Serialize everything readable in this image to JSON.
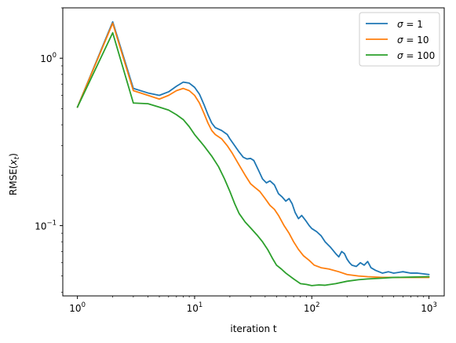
{
  "chart_data": {
    "type": "line",
    "xlabel": "iteration t",
    "ylabel": "RMSE(x_t)",
    "xscale": "log",
    "yscale": "log",
    "xlim": [
      0.75,
      1350
    ],
    "ylim": [
      0.038,
      2.0
    ],
    "x_ticks": [
      {
        "value": 1,
        "base": "10",
        "exp": "0"
      },
      {
        "value": 10,
        "base": "10",
        "exp": "1"
      },
      {
        "value": 100,
        "base": "10",
        "exp": "2"
      },
      {
        "value": 1000,
        "base": "10",
        "exp": "3"
      }
    ],
    "y_ticks": [
      {
        "value": 0.1,
        "base": "10",
        "exp": "−1"
      },
      {
        "value": 1,
        "base": "10",
        "exp": "0"
      }
    ],
    "legend": {
      "placement": "top-right",
      "entries": [
        {
          "symbol": "σ",
          "label": "1"
        },
        {
          "symbol": "σ",
          "label": "10"
        },
        {
          "symbol": "σ",
          "label": "100"
        }
      ]
    },
    "series": [
      {
        "name": "σ = 1",
        "color": "#1f77b4",
        "points": [
          [
            1,
            0.51
          ],
          [
            2,
            1.65
          ],
          [
            3,
            0.66
          ],
          [
            4,
            0.62
          ],
          [
            5,
            0.6
          ],
          [
            6,
            0.63
          ],
          [
            7,
            0.68
          ],
          [
            8,
            0.72
          ],
          [
            9,
            0.71
          ],
          [
            10,
            0.67
          ],
          [
            11,
            0.61
          ],
          [
            12,
            0.53
          ],
          [
            13,
            0.46
          ],
          [
            14,
            0.41
          ],
          [
            15,
            0.385
          ],
          [
            17,
            0.37
          ],
          [
            19,
            0.35
          ],
          [
            20,
            0.33
          ],
          [
            22,
            0.3
          ],
          [
            24,
            0.275
          ],
          [
            26,
            0.256
          ],
          [
            28,
            0.25
          ],
          [
            30,
            0.252
          ],
          [
            32,
            0.245
          ],
          [
            35,
            0.215
          ],
          [
            38,
            0.19
          ],
          [
            41,
            0.18
          ],
          [
            44,
            0.185
          ],
          [
            48,
            0.175
          ],
          [
            52,
            0.155
          ],
          [
            56,
            0.148
          ],
          [
            60,
            0.14
          ],
          [
            64,
            0.145
          ],
          [
            68,
            0.135
          ],
          [
            72,
            0.12
          ],
          [
            77,
            0.11
          ],
          [
            82,
            0.115
          ],
          [
            88,
            0.108
          ],
          [
            95,
            0.1
          ],
          [
            100,
            0.096
          ],
          [
            110,
            0.092
          ],
          [
            120,
            0.087
          ],
          [
            130,
            0.08
          ],
          [
            145,
            0.074
          ],
          [
            160,
            0.068
          ],
          [
            170,
            0.065
          ],
          [
            180,
            0.07
          ],
          [
            190,
            0.068
          ],
          [
            200,
            0.063
          ],
          [
            210,
            0.06
          ],
          [
            220,
            0.058
          ],
          [
            240,
            0.057
          ],
          [
            260,
            0.06
          ],
          [
            280,
            0.058
          ],
          [
            300,
            0.061
          ],
          [
            320,
            0.056
          ],
          [
            350,
            0.054
          ],
          [
            400,
            0.052
          ],
          [
            450,
            0.053
          ],
          [
            500,
            0.052
          ],
          [
            600,
            0.053
          ],
          [
            700,
            0.052
          ],
          [
            800,
            0.052
          ],
          [
            1000,
            0.051
          ]
        ]
      },
      {
        "name": "σ = 10",
        "color": "#ff7f0e",
        "points": [
          [
            1,
            0.51
          ],
          [
            2,
            1.62
          ],
          [
            3,
            0.64
          ],
          [
            4,
            0.6
          ],
          [
            5,
            0.57
          ],
          [
            6,
            0.6
          ],
          [
            7,
            0.64
          ],
          [
            8,
            0.66
          ],
          [
            9,
            0.64
          ],
          [
            10,
            0.6
          ],
          [
            11,
            0.54
          ],
          [
            12,
            0.47
          ],
          [
            13,
            0.41
          ],
          [
            14,
            0.37
          ],
          [
            15,
            0.35
          ],
          [
            17,
            0.33
          ],
          [
            19,
            0.3
          ],
          [
            21,
            0.27
          ],
          [
            24,
            0.23
          ],
          [
            27,
            0.2
          ],
          [
            30,
            0.178
          ],
          [
            33,
            0.168
          ],
          [
            36,
            0.16
          ],
          [
            40,
            0.145
          ],
          [
            44,
            0.132
          ],
          [
            48,
            0.125
          ],
          [
            52,
            0.115
          ],
          [
            58,
            0.1
          ],
          [
            64,
            0.09
          ],
          [
            70,
            0.08
          ],
          [
            77,
            0.072
          ],
          [
            85,
            0.066
          ],
          [
            95,
            0.062
          ],
          [
            105,
            0.058
          ],
          [
            120,
            0.056
          ],
          [
            140,
            0.055
          ],
          [
            170,
            0.053
          ],
          [
            200,
            0.051
          ],
          [
            250,
            0.05
          ],
          [
            300,
            0.0495
          ],
          [
            400,
            0.049
          ],
          [
            500,
            0.049
          ],
          [
            700,
            0.049
          ],
          [
            1000,
            0.049
          ]
        ]
      },
      {
        "name": "σ = 100",
        "color": "#2ca02c",
        "points": [
          [
            1,
            0.51
          ],
          [
            2,
            1.42
          ],
          [
            3,
            0.54
          ],
          [
            4,
            0.535
          ],
          [
            5,
            0.51
          ],
          [
            6,
            0.49
          ],
          [
            7,
            0.46
          ],
          [
            8,
            0.43
          ],
          [
            9,
            0.39
          ],
          [
            10,
            0.35
          ],
          [
            12,
            0.3
          ],
          [
            14,
            0.26
          ],
          [
            16,
            0.225
          ],
          [
            18,
            0.19
          ],
          [
            20,
            0.16
          ],
          [
            22,
            0.135
          ],
          [
            24,
            0.118
          ],
          [
            27,
            0.105
          ],
          [
            30,
            0.097
          ],
          [
            34,
            0.088
          ],
          [
            38,
            0.08
          ],
          [
            42,
            0.072
          ],
          [
            46,
            0.064
          ],
          [
            50,
            0.058
          ],
          [
            55,
            0.055
          ],
          [
            60,
            0.052
          ],
          [
            70,
            0.048
          ],
          [
            80,
            0.045
          ],
          [
            90,
            0.0445
          ],
          [
            100,
            0.0438
          ],
          [
            115,
            0.0442
          ],
          [
            130,
            0.044
          ],
          [
            160,
            0.045
          ],
          [
            200,
            0.0465
          ],
          [
            250,
            0.0475
          ],
          [
            300,
            0.048
          ],
          [
            400,
            0.0485
          ],
          [
            500,
            0.049
          ],
          [
            700,
            0.0492
          ],
          [
            1000,
            0.0495
          ]
        ]
      }
    ]
  }
}
